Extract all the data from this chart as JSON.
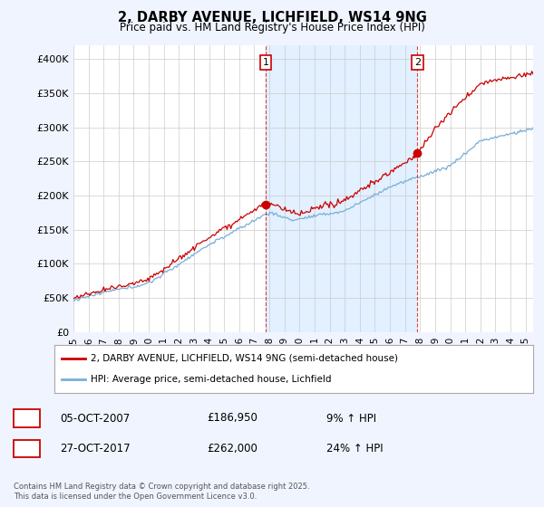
{
  "title": "2, DARBY AVENUE, LICHFIELD, WS14 9NG",
  "subtitle": "Price paid vs. HM Land Registry's House Price Index (HPI)",
  "ylabel_ticks": [
    "£0",
    "£50K",
    "£100K",
    "£150K",
    "£200K",
    "£250K",
    "£300K",
    "£350K",
    "£400K"
  ],
  "ytick_values": [
    0,
    50000,
    100000,
    150000,
    200000,
    250000,
    300000,
    350000,
    400000
  ],
  "ylim": [
    0,
    420000
  ],
  "xlim_start": 1995.0,
  "xlim_end": 2025.5,
  "line1_color": "#cc0000",
  "line2_color": "#7aaed6",
  "shade_color": "#ddeeff",
  "marker1_date": 2007.76,
  "marker2_date": 2017.82,
  "marker1_price": 186950,
  "marker2_price": 262000,
  "legend_line1": "2, DARBY AVENUE, LICHFIELD, WS14 9NG (semi-detached house)",
  "legend_line2": "HPI: Average price, semi-detached house, Lichfield",
  "annotation1_date": "05-OCT-2007",
  "annotation1_price": "£186,950",
  "annotation1_hpi": "9% ↑ HPI",
  "annotation2_date": "27-OCT-2017",
  "annotation2_price": "£262,000",
  "annotation2_hpi": "24% ↑ HPI",
  "footer": "Contains HM Land Registry data © Crown copyright and database right 2025.\nThis data is licensed under the Open Government Licence v3.0.",
  "bg_color": "#f0f4ff",
  "plot_bg_color": "#ffffff",
  "grid_color": "#cccccc"
}
